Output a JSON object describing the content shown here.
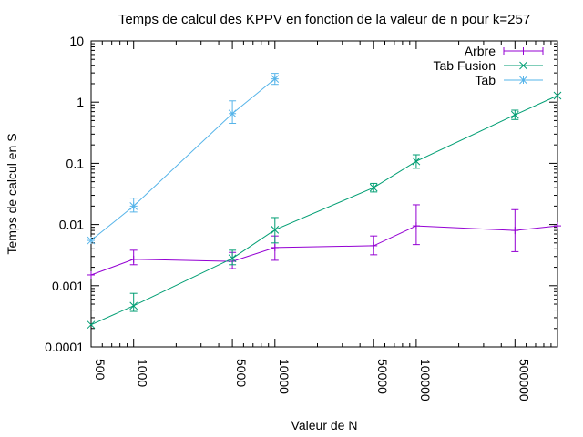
{
  "chart_data": {
    "type": "line",
    "title": "Temps de calcul des KPPV en fonction de la valeur de n pour k=257",
    "xlabel": "Valeur de N",
    "ylabel": "Temps de calcul en S",
    "x_scale": "log",
    "y_scale": "log",
    "xlim": [
      500,
      1000000
    ],
    "ylim": [
      0.0001,
      10
    ],
    "x_ticks": [
      500,
      1000,
      5000,
      10000,
      50000,
      100000,
      500000
    ],
    "x_tick_labels": [
      "500",
      "1000",
      "5000",
      "10000",
      "50000",
      "100000",
      "500000"
    ],
    "y_ticks": [
      0.0001,
      0.001,
      0.01,
      0.1,
      1,
      10
    ],
    "y_tick_labels": [
      "0.0001",
      "0.001",
      "0.01",
      "0.1",
      "1",
      "10"
    ],
    "grid": false,
    "legend_position": "top-right",
    "series": [
      {
        "name": "Arbre",
        "color": "#9400d3",
        "marker": "plus",
        "x": [
          500,
          1000,
          5000,
          10000,
          50000,
          100000,
          500000,
          1000000
        ],
        "y": [
          0.0015,
          0.0027,
          0.0025,
          0.0042,
          0.0045,
          0.0095,
          0.008,
          0.0095
        ],
        "err_low": [
          0.0015,
          0.0022,
          0.0019,
          0.0026,
          0.0032,
          0.0047,
          0.0036,
          0.0095
        ],
        "err_high": [
          0.0015,
          0.0038,
          0.0035,
          0.0065,
          0.0065,
          0.021,
          0.0175,
          0.0095
        ]
      },
      {
        "name": "Tab Fusion",
        "color": "#009e73",
        "marker": "cross",
        "x": [
          500,
          1000,
          5000,
          10000,
          50000,
          100000,
          500000,
          1000000
        ],
        "y": [
          0.00023,
          0.00047,
          0.0028,
          0.0082,
          0.04,
          0.108,
          0.62,
          1.28
        ],
        "err_low": [
          0.00023,
          0.00038,
          0.0022,
          0.005,
          0.034,
          0.083,
          0.52,
          1.28
        ],
        "err_high": [
          0.00023,
          0.00075,
          0.0038,
          0.013,
          0.047,
          0.138,
          0.74,
          1.28
        ]
      },
      {
        "name": "Tab",
        "color": "#56b4e9",
        "marker": "star",
        "x": [
          500,
          1000,
          5000,
          10000
        ],
        "y": [
          0.0055,
          0.02,
          0.65,
          2.4
        ],
        "err_low": [
          0.0055,
          0.016,
          0.45,
          1.95
        ],
        "err_high": [
          0.0055,
          0.027,
          1.05,
          2.95
        ]
      }
    ]
  }
}
